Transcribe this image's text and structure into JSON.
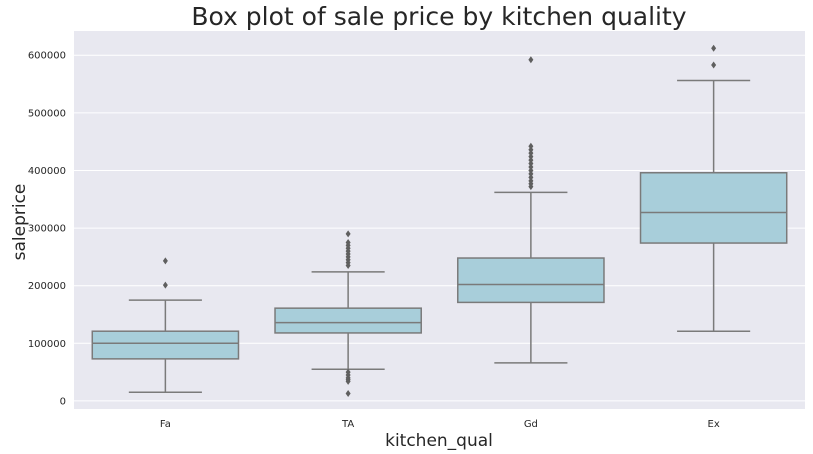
{
  "chart_data": {
    "type": "box",
    "title": "Box plot of sale price by kitchen quality",
    "xlabel": "kitchen_qual",
    "ylabel": "saleprice",
    "ylim": [
      -14000,
      642000
    ],
    "yticks": [
      0,
      100000,
      200000,
      300000,
      400000,
      500000,
      600000
    ],
    "grid": true,
    "box_color": "#a8ceda",
    "line_color": "#7a7a7a",
    "background": "#e8e8f0",
    "categories": [
      "Fa",
      "TA",
      "Gd",
      "Ex"
    ],
    "boxes": [
      {
        "category": "Fa",
        "whisker_low": 15000,
        "q1": 73000,
        "median": 100000,
        "q3": 121000,
        "whisker_high": 175000,
        "outliers": [
          201000,
          243000
        ]
      },
      {
        "category": "TA",
        "whisker_low": 55000,
        "q1": 118000,
        "median": 136000,
        "q3": 161000,
        "whisker_high": 224000,
        "outliers": [
          235000,
          240000,
          245000,
          250000,
          255000,
          260000,
          265000,
          270000,
          275000,
          290000,
          50000,
          45000,
          40000,
          37000,
          34000,
          13000
        ]
      },
      {
        "category": "Gd",
        "whisker_low": 66000,
        "q1": 171000,
        "median": 202000,
        "q3": 248000,
        "whisker_high": 362000,
        "outliers": [
          372000,
          377000,
          382000,
          388000,
          394000,
          400000,
          406000,
          412000,
          418000,
          424000,
          430000,
          436000,
          442000,
          592000
        ]
      },
      {
        "category": "Ex",
        "whisker_low": 121000,
        "q1": 274000,
        "median": 327000,
        "q3": 396000,
        "whisker_high": 556000,
        "outliers": [
          583000,
          612000
        ]
      }
    ]
  }
}
